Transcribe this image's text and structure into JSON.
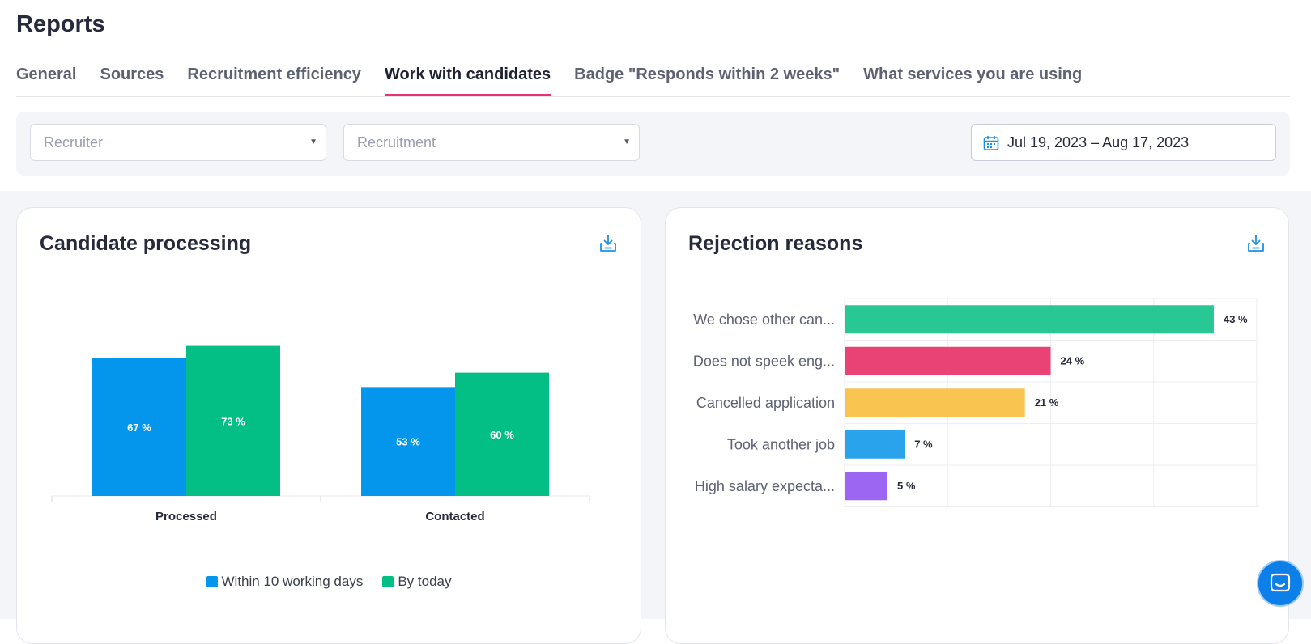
{
  "page": {
    "title": "Reports"
  },
  "tabs": [
    {
      "label": "General",
      "active": false
    },
    {
      "label": "Sources",
      "active": false
    },
    {
      "label": "Recruitment efficiency",
      "active": false
    },
    {
      "label": "Work with candidates",
      "active": true
    },
    {
      "label": "Badge \"Responds within 2 weeks\"",
      "active": false
    },
    {
      "label": "What services you are using",
      "active": false
    }
  ],
  "filters": {
    "recruiter_placeholder": "Recruiter",
    "recruitment_placeholder": "Recruitment",
    "date_range": "Jul 19, 2023 – Aug 17, 2023",
    "calendar_icon": "calendar-icon"
  },
  "cards": {
    "candidate_processing": {
      "title": "Candidate processing",
      "download_icon": "download-icon"
    },
    "rejection_reasons": {
      "title": "Rejection reasons",
      "download_icon": "download-icon"
    }
  },
  "chart_data": [
    {
      "type": "bar",
      "title": "Candidate processing",
      "categories": [
        "Processed",
        "Contacted"
      ],
      "series": [
        {
          "name": "Within 10 working days",
          "values": [
            67,
            53
          ],
          "labels": [
            "67 %",
            "53 %"
          ],
          "color": "#0396ec"
        },
        {
          "name": "By today",
          "values": [
            73,
            60
          ],
          "labels": [
            "73 %",
            "60 %"
          ],
          "color": "#03bf85"
        }
      ],
      "ylim": [
        0,
        100
      ],
      "legend": "bottom-center"
    },
    {
      "type": "bar",
      "orientation": "horizontal",
      "title": "Rejection reasons",
      "categories": [
        "We chose other can...",
        "Does not speek eng...",
        "Cancelled application",
        "Took another job",
        "High salary expecta..."
      ],
      "values": [
        43,
        24,
        21,
        7,
        5
      ],
      "labels": [
        "43 %",
        "24 %",
        "21 %",
        "7 %",
        "5 %"
      ],
      "colors": [
        "#27c893",
        "#e94275",
        "#fac451",
        "#29a3ec",
        "#9d66f2"
      ],
      "xlim": [
        0,
        48
      ],
      "grid": true
    }
  ],
  "chat": {
    "icon": "chat-icon"
  }
}
